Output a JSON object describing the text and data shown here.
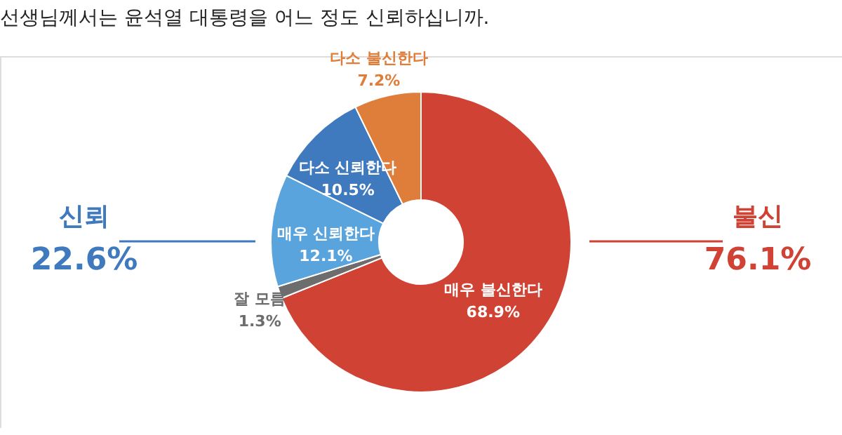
{
  "chart_data": {
    "type": "donut",
    "title": "선생님께서는 윤석열 대통령을 어느 정도 신뢰하십니까.",
    "categories": [
      "매우 불신한다",
      "잘 모름",
      "매우 신뢰한다",
      "다소 신뢰한다",
      "다소 불신한다"
    ],
    "values": [
      68.9,
      1.3,
      12.1,
      10.5,
      7.2
    ],
    "value_labels": [
      "68.9%",
      "1.3%",
      "12.1%",
      "10.5%",
      "7.2%"
    ],
    "colors": [
      "#d04234",
      "#6d6d6d",
      "#5aa4de",
      "#3f79be",
      "#de7e3a"
    ],
    "annotations": [
      "신뢰",
      "22.6%",
      "불신",
      "76.1%"
    ],
    "legend": false
  }
}
